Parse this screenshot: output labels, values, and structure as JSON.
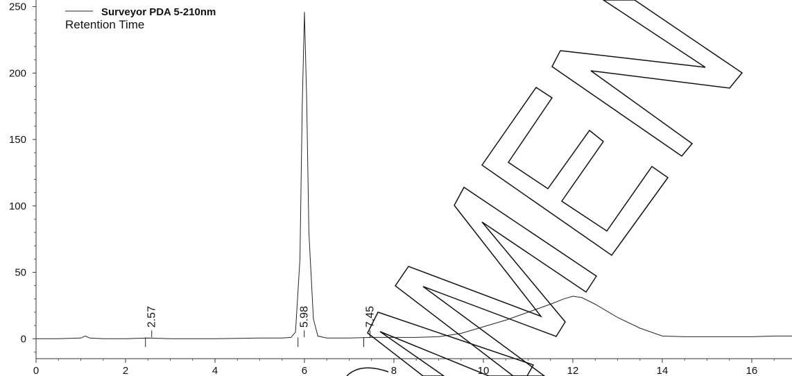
{
  "chart_data": {
    "type": "line",
    "series": [
      {
        "name": "Surveyor PDA 5-210nm",
        "x": [
          0.0,
          0.5,
          1.0,
          1.1,
          1.2,
          1.5,
          2.0,
          2.5,
          3.0,
          3.5,
          4.0,
          4.5,
          5.0,
          5.5,
          5.7,
          5.8,
          5.9,
          5.95,
          6.0,
          6.05,
          6.1,
          6.2,
          6.3,
          6.5,
          7.0,
          7.5,
          8.0,
          8.5,
          9.0,
          9.5,
          10.0,
          10.5,
          11.0,
          11.5,
          11.8,
          12.0,
          12.2,
          12.5,
          13.0,
          13.5,
          14.0,
          14.5,
          15.0,
          15.5,
          16.0,
          16.5,
          16.9
        ],
        "y": [
          0,
          0,
          0.5,
          2,
          0.5,
          0,
          0,
          0.5,
          0,
          0,
          0,
          0.3,
          0.5,
          0.5,
          1,
          5,
          60,
          175,
          246,
          180,
          80,
          15,
          2,
          0.5,
          0.5,
          1,
          1,
          1,
          1.5,
          4,
          9,
          14,
          20,
          26,
          30,
          32,
          31,
          26,
          16,
          8,
          2,
          1.5,
          1.5,
          1.5,
          1.5,
          2,
          2
        ]
      }
    ],
    "subtitle": "Retention Time",
    "xlim": [
      0,
      16.9
    ],
    "ylim": [
      -15,
      255
    ],
    "x_ticks": [
      0,
      2,
      4,
      6,
      8,
      10,
      12,
      14,
      16
    ],
    "y_ticks": [
      0,
      50,
      100,
      150,
      200,
      250
    ],
    "peak_labels": [
      {
        "x": 2.57,
        "label": "2.57"
      },
      {
        "x": 5.98,
        "label": "5.98"
      },
      {
        "x": 7.45,
        "label": "7.45"
      }
    ],
    "grid": false,
    "legend": "top-left",
    "watermark": "MEN"
  }
}
